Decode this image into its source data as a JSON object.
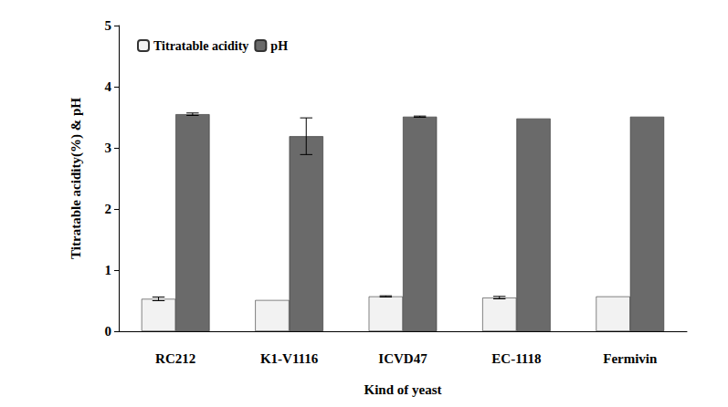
{
  "chart_data": {
    "type": "bar",
    "x_label": "Kind of yeast",
    "y_label": "Titratable acidity(%) & pH",
    "categories": [
      "RC212",
      "K1-V1116",
      "ICVD47",
      "EC-1118",
      "Fermivin"
    ],
    "series": [
      {
        "name": "Titratable acidity",
        "color": "#f2f2f2",
        "values": [
          0.53,
          0.51,
          0.57,
          0.55,
          0.57
        ],
        "errors": [
          0.03,
          0,
          0.01,
          0.02,
          0
        ]
      },
      {
        "name": "pH",
        "color": "#6a6a6a",
        "values": [
          3.55,
          3.19,
          3.51,
          3.48,
          3.51
        ],
        "errors": [
          0.02,
          0.3,
          0.01,
          0,
          0
        ]
      }
    ],
    "ylim": [
      0,
      5
    ],
    "yticks": [
      0,
      1,
      2,
      3,
      4,
      5
    ],
    "grid": false,
    "legend": "top-left"
  }
}
